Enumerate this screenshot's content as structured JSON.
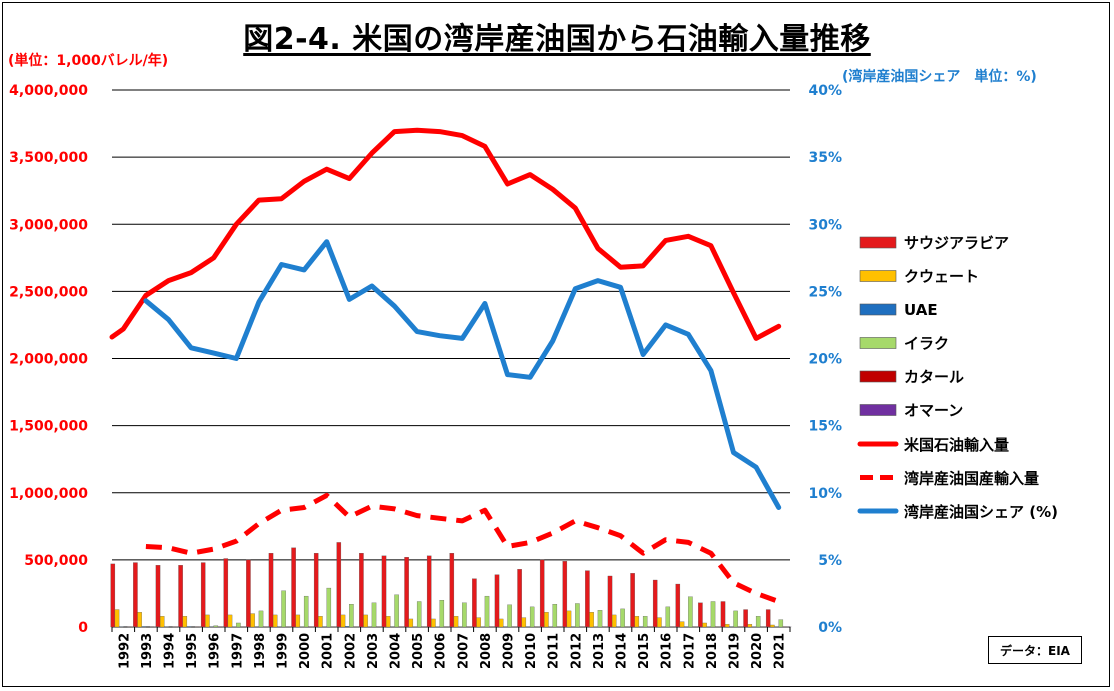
{
  "title": "図2-4. 米国の湾岸産油国から石油輸入量推移",
  "unit_left": "(単位：1,000バレル/年)",
  "unit_right": "(湾岸産油国シェア　単位：%)",
  "source": "データ：EIA",
  "colors": {
    "saudi": "#e41a1c",
    "kuwait": "#ffc000",
    "uae": "#1f6fbf",
    "iraq": "#a6d96a",
    "qatar": "#c00000",
    "oman": "#7030a0",
    "us_total": "#ff0000",
    "gulf": "#ff0000",
    "share": "#1f7fcf"
  },
  "chart_data": {
    "type": "bar",
    "title": "図2-4. 米国の湾岸産油国から石油輸入量推移",
    "categories": [
      "1992",
      "1993",
      "1994",
      "1995",
      "1996",
      "1997",
      "1998",
      "1999",
      "2000",
      "2001",
      "2002",
      "2003",
      "2004",
      "2005",
      "2006",
      "2007",
      "2008",
      "2009",
      "2010",
      "2011",
      "2012",
      "2013",
      "2014",
      "2015",
      "2016",
      "2017",
      "2018",
      "2019",
      "2020",
      "2021"
    ],
    "y_left": {
      "min": 0,
      "max": 4000000,
      "step": 500000,
      "tick_labels": [
        "0",
        "500,000",
        "1,000,000",
        "1,500,000",
        "2,000,000",
        "2,500,000",
        "3,000,000",
        "3,500,000",
        "4,000,000"
      ]
    },
    "y_right": {
      "min": 0,
      "max": 40,
      "step": 5,
      "tick_labels": [
        "0%",
        "5%",
        "10%",
        "15%",
        "20%",
        "25%",
        "30%",
        "35%",
        "40%"
      ]
    },
    "grid": true,
    "legend_position": "right",
    "bar_series": [
      {
        "name": "サウジアラビア",
        "key": "saudi",
        "values": [
          470000,
          480000,
          460000,
          460000,
          480000,
          510000,
          500000,
          550000,
          590000,
          550000,
          630000,
          550000,
          530000,
          520000,
          530000,
          550000,
          360000,
          390000,
          430000,
          500000,
          490000,
          420000,
          380000,
          400000,
          350000,
          320000,
          180000,
          190000,
          130000,
          130000
        ]
      },
      {
        "name": "クウェート",
        "key": "kuwait",
        "values": [
          130000,
          110000,
          80000,
          80000,
          90000,
          90000,
          100000,
          90000,
          90000,
          80000,
          90000,
          90000,
          80000,
          60000,
          60000,
          80000,
          70000,
          60000,
          70000,
          110000,
          120000,
          110000,
          90000,
          80000,
          70000,
          40000,
          30000,
          20000,
          20000,
          15000
        ]
      },
      {
        "name": "UAE",
        "key": "uae",
        "values": [
          3000,
          4000,
          3000,
          4000,
          3000,
          2000,
          1000,
          3000,
          2000,
          3000,
          5000,
          2000,
          1000,
          2000,
          2000,
          2000,
          2000,
          3000,
          3000,
          2000,
          1000,
          2000,
          3000,
          3000,
          2000,
          3000,
          2000,
          3000,
          2000,
          3000
        ]
      },
      {
        "name": "イラク",
        "key": "iraq",
        "values": [
          0,
          0,
          0,
          0,
          10000,
          30000,
          120000,
          270000,
          230000,
          290000,
          170000,
          180000,
          240000,
          190000,
          200000,
          180000,
          230000,
          165000,
          150000,
          170000,
          175000,
          125000,
          135000,
          80000,
          150000,
          225000,
          190000,
          120000,
          80000,
          55000
        ]
      },
      {
        "name": "カタール",
        "key": "qatar",
        "values": [
          1000,
          1000,
          1000,
          1000,
          1000,
          1000,
          1000,
          1000,
          1000,
          1000,
          1000,
          1000,
          1000,
          1000,
          1000,
          1000,
          1000,
          1000,
          1000,
          1000,
          1000,
          1000,
          1000,
          1000,
          1000,
          1000,
          1000,
          1000,
          1000,
          1000
        ]
      },
      {
        "name": "オマーン",
        "key": "oman",
        "values": [
          2000,
          2000,
          1000,
          1000,
          1000,
          1000,
          1000,
          1000,
          1000,
          1000,
          1000,
          1000,
          1000,
          1000,
          1000,
          1000,
          1000,
          1000,
          1000,
          1000,
          1000,
          1000,
          1000,
          1000,
          1000,
          1000,
          1000,
          1000,
          1000,
          1000
        ]
      }
    ],
    "line_series": [
      {
        "name": "米国石油輸入量",
        "key": "us_total",
        "axis": "left",
        "dashed": false,
        "values": [
          2220000,
          2470000,
          2580000,
          2640000,
          2750000,
          3000000,
          3180000,
          3190000,
          3320000,
          3410000,
          3340000,
          3530000,
          3690000,
          3700000,
          3690000,
          3660000,
          3580000,
          3300000,
          3370000,
          3260000,
          3120000,
          2820000,
          2680000,
          2690000,
          2880000,
          2910000,
          2840000,
          2490000,
          2150000,
          2240000
        ]
      },
      {
        "name": "湾岸産油国産輸入量",
        "key": "gulf",
        "axis": "left",
        "dashed": true,
        "values": [
          null,
          600000,
          590000,
          550000,
          580000,
          640000,
          770000,
          870000,
          890000,
          980000,
          820000,
          900000,
          880000,
          830000,
          810000,
          790000,
          870000,
          600000,
          630000,
          700000,
          790000,
          740000,
          680000,
          550000,
          650000,
          630000,
          550000,
          330000,
          250000,
          190000
        ]
      },
      {
        "name": "湾岸産油国シェア (%)",
        "key": "share",
        "axis": "right",
        "dashed": false,
        "values": [
          null,
          24.3,
          22.9,
          20.8,
          20.4,
          20.0,
          24.2,
          27.0,
          26.6,
          28.7,
          24.4,
          25.4,
          23.9,
          22.0,
          21.7,
          21.5,
          24.1,
          18.8,
          18.6,
          21.3,
          25.2,
          25.8,
          25.3,
          20.3,
          22.5,
          21.8,
          19.1,
          13.0,
          11.9,
          8.9
        ]
      }
    ]
  }
}
